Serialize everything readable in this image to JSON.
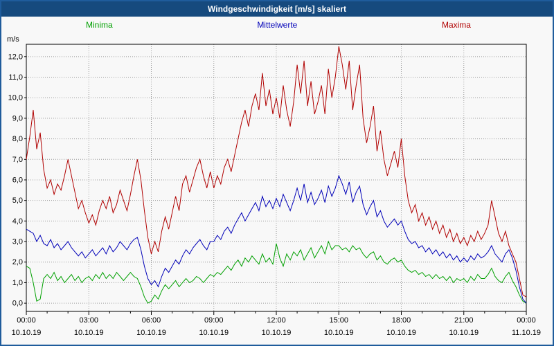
{
  "title": "Windgeschwindigkeit [m/s] skaliert",
  "legend": {
    "minima": {
      "label": "Minima",
      "color": "#00a000"
    },
    "mittelwerte": {
      "label": "Mittelwerte",
      "color": "#0000b8"
    },
    "maxima": {
      "label": "Maxima",
      "color": "#b00000"
    }
  },
  "chart_data": {
    "type": "line",
    "title": "Windgeschwindigkeit [m/s] skaliert",
    "xlabel": "",
    "ylabel": "m/s",
    "ylim": [
      -0.4,
      12.6
    ],
    "grid": "dotted",
    "legend_position": "top",
    "x_total_minutes": 1440,
    "x_step_minutes": 10,
    "y_ticks": {
      "values": [
        0,
        1,
        2,
        3,
        4,
        5,
        6,
        7,
        8,
        9,
        10,
        11,
        12
      ],
      "labels": [
        "0,0",
        "1,0",
        "2,0",
        "3,0",
        "4,0",
        "5,0",
        "6,0",
        "7,0",
        "8,0",
        "9,0",
        "10,0",
        "11,0",
        "12,0"
      ]
    },
    "x_ticks": [
      {
        "minutes": 0,
        "time": "00:00",
        "date": "10.10.19"
      },
      {
        "minutes": 180,
        "time": "03:00",
        "date": "10.10.19"
      },
      {
        "minutes": 360,
        "time": "06:00",
        "date": "10.10.19"
      },
      {
        "minutes": 540,
        "time": "09:00",
        "date": "10.10.19"
      },
      {
        "minutes": 720,
        "time": "12:00",
        "date": "10.10.19"
      },
      {
        "minutes": 900,
        "time": "15:00",
        "date": "10.10.19"
      },
      {
        "minutes": 1080,
        "time": "18:00",
        "date": "10.10.19"
      },
      {
        "minutes": 1260,
        "time": "21:00",
        "date": "10.10.19"
      },
      {
        "minutes": 1440,
        "time": "00:00",
        "date": "11.10.19"
      }
    ],
    "series": [
      {
        "name": "Minima",
        "color": "#00a000",
        "values": [
          1.8,
          1.7,
          1.0,
          0.1,
          0.2,
          1.2,
          1.4,
          1.2,
          1.5,
          1.1,
          1.3,
          1.0,
          1.2,
          1.4,
          1.1,
          1.3,
          1.0,
          1.2,
          1.3,
          1.1,
          1.4,
          1.2,
          1.5,
          1.2,
          1.4,
          1.2,
          1.5,
          1.3,
          1.1,
          1.3,
          1.5,
          1.3,
          1.2,
          0.8,
          0.3,
          0.0,
          0.1,
          0.4,
          0.2,
          0.6,
          0.9,
          0.7,
          0.9,
          1.1,
          0.8,
          1.0,
          1.2,
          1.0,
          1.1,
          1.3,
          1.2,
          1.0,
          1.2,
          1.4,
          1.3,
          1.5,
          1.4,
          1.6,
          1.8,
          1.6,
          1.9,
          2.1,
          1.8,
          2.2,
          2.0,
          2.3,
          2.1,
          1.9,
          2.4,
          2.0,
          2.2,
          1.9,
          2.9,
          2.2,
          1.8,
          2.4,
          2.1,
          2.5,
          2.3,
          2.6,
          2.1,
          2.4,
          2.7,
          2.2,
          2.5,
          2.8,
          2.4,
          3.0,
          2.6,
          2.8,
          2.8,
          2.6,
          2.7,
          2.5,
          2.8,
          2.6,
          2.7,
          2.4,
          2.2,
          2.4,
          2.5,
          2.1,
          2.3,
          2.0,
          1.9,
          2.1,
          2.2,
          2.0,
          2.1,
          1.8,
          1.6,
          1.5,
          1.6,
          1.4,
          1.5,
          1.3,
          1.4,
          1.2,
          1.4,
          1.2,
          1.3,
          1.1,
          1.3,
          1.0,
          1.2,
          1.1,
          1.2,
          1.0,
          1.3,
          1.1,
          1.4,
          1.2,
          1.2,
          1.4,
          1.7,
          1.3,
          1.1,
          1.0,
          1.3,
          1.5,
          1.1,
          0.8,
          0.4,
          0.1,
          0.0
        ]
      },
      {
        "name": "Mittelwerte",
        "color": "#0000b8",
        "values": [
          3.6,
          3.5,
          3.4,
          3.0,
          3.3,
          2.9,
          2.8,
          3.1,
          2.7,
          2.9,
          2.6,
          2.8,
          3.0,
          2.7,
          2.5,
          2.3,
          2.5,
          2.2,
          2.4,
          2.6,
          2.3,
          2.5,
          2.7,
          2.4,
          2.8,
          2.5,
          2.7,
          3.0,
          2.8,
          2.6,
          2.9,
          3.1,
          3.2,
          2.6,
          1.8,
          1.2,
          0.9,
          1.1,
          0.8,
          1.3,
          1.7,
          1.5,
          1.8,
          2.1,
          1.9,
          2.3,
          2.6,
          2.4,
          2.7,
          2.9,
          3.1,
          2.8,
          2.6,
          3.0,
          3.0,
          3.3,
          3.1,
          3.5,
          3.7,
          3.4,
          3.8,
          4.1,
          4.4,
          4.0,
          4.3,
          4.6,
          4.9,
          4.5,
          5.2,
          4.7,
          5.0,
          4.6,
          5.1,
          4.7,
          5.3,
          4.9,
          4.5,
          5.0,
          5.6,
          5.0,
          5.8,
          4.9,
          5.4,
          4.8,
          5.1,
          5.5,
          4.9,
          5.7,
          5.2,
          5.6,
          6.2,
          5.8,
          5.3,
          5.9,
          4.9,
          5.4,
          5.7,
          4.8,
          4.3,
          4.7,
          5.0,
          4.2,
          4.5,
          4.0,
          3.7,
          3.9,
          4.1,
          3.8,
          4.0,
          3.5,
          3.1,
          2.9,
          3.0,
          2.7,
          2.8,
          2.5,
          2.7,
          2.4,
          2.6,
          2.3,
          2.5,
          2.2,
          2.4,
          2.1,
          2.3,
          2.0,
          2.2,
          2.0,
          2.3,
          2.1,
          2.4,
          2.2,
          2.3,
          2.5,
          2.8,
          2.4,
          2.2,
          2.0,
          2.4,
          2.6,
          2.2,
          1.6,
          0.8,
          0.2,
          0.0
        ]
      },
      {
        "name": "Maxima",
        "color": "#b00000",
        "values": [
          7.0,
          8.1,
          9.4,
          7.5,
          8.3,
          6.5,
          5.6,
          6.0,
          5.3,
          5.8,
          5.5,
          6.2,
          7.0,
          6.2,
          5.4,
          4.6,
          5.0,
          4.4,
          3.9,
          4.3,
          3.8,
          4.5,
          5.0,
          4.6,
          5.2,
          4.4,
          4.8,
          5.5,
          5.0,
          4.5,
          5.3,
          6.2,
          7.0,
          6.0,
          4.5,
          3.2,
          2.4,
          3.0,
          2.5,
          3.5,
          4.2,
          3.6,
          4.4,
          5.2,
          4.5,
          5.8,
          6.2,
          5.4,
          6.0,
          6.6,
          7.0,
          6.2,
          5.6,
          6.4,
          5.6,
          6.2,
          5.8,
          6.6,
          7.0,
          6.4,
          7.2,
          8.0,
          8.8,
          9.4,
          8.6,
          9.6,
          10.2,
          9.4,
          11.2,
          9.6,
          10.4,
          9.2,
          10.0,
          9.0,
          10.6,
          9.4,
          8.6,
          9.8,
          11.6,
          10.2,
          11.8,
          9.6,
          10.8,
          9.2,
          9.8,
          10.6,
          9.2,
          11.4,
          10.0,
          11.0,
          12.5,
          11.6,
          10.4,
          11.8,
          9.4,
          10.6,
          11.6,
          9.0,
          7.8,
          8.6,
          9.6,
          7.4,
          8.4,
          7.0,
          6.2,
          6.8,
          7.4,
          6.6,
          8.0,
          6.2,
          5.0,
          4.4,
          4.8,
          4.0,
          4.4,
          3.8,
          4.2,
          3.6,
          4.0,
          3.4,
          3.8,
          3.2,
          3.6,
          3.0,
          3.4,
          2.9,
          3.2,
          2.8,
          3.3,
          3.0,
          3.5,
          3.1,
          3.4,
          3.8,
          5.0,
          4.2,
          3.4,
          3.0,
          3.5,
          2.8,
          2.4,
          2.0,
          1.2,
          0.4,
          0.3
        ]
      }
    ]
  }
}
